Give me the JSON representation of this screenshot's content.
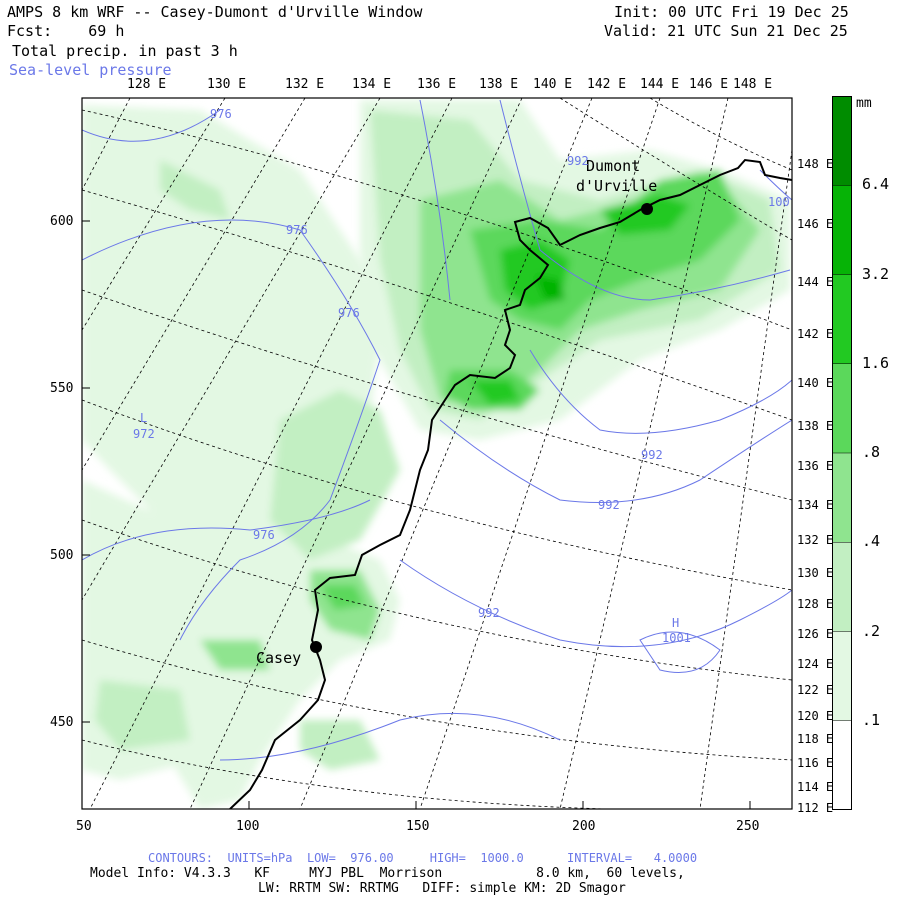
{
  "header": {
    "title": "AMPS 8 km WRF -- Casey-Dumont d'Urville Window",
    "fcst": "Fcst:    69 h",
    "field": "Total precip. in past 3 h",
    "overlay": "Sea-level pressure",
    "init": "Init: 00 UTC Fri 19 Dec 25",
    "valid": "Valid: 21 UTC Sun 21 Dec 25"
  },
  "colorbar": {
    "units": "mm",
    "levels": [
      ".1",
      ".2",
      ".4",
      ".8",
      "1.6",
      "3.2",
      "6.4"
    ],
    "colors": [
      "#ffffff",
      "#e3f8e3",
      "#c2efc2",
      "#8fe48f",
      "#5bd85b",
      "#22c922",
      "#06b306",
      "#008c00"
    ]
  },
  "axes": {
    "top_lon": [
      "128 E",
      "130 E",
      "132 E",
      "134 E",
      "136 E",
      "138 E",
      "140 E",
      "142 E",
      "144 E",
      "146 E",
      "148 E"
    ],
    "right_lon": [
      "148 E",
      "146 E",
      "144 E",
      "142 E",
      "140 E",
      "138 E",
      "136 E",
      "134 E",
      "132 E",
      "130 E",
      "128 E",
      "126 E",
      "124 E",
      "122 E",
      "120 E",
      "118 E",
      "116 E",
      "114 E",
      "112 E"
    ],
    "left_y": [
      "600",
      "550",
      "500",
      "450"
    ],
    "bottom_x": [
      "50",
      "100",
      "150",
      "200",
      "250"
    ]
  },
  "stations": [
    {
      "name": "Casey"
    },
    {
      "name": "Dumont",
      "name2": "d'Urville"
    }
  ],
  "pressure_labels": [
    "976",
    "976",
    "976",
    "976",
    "992",
    "992",
    "992",
    "992",
    "100"
  ],
  "pressure_centers": [
    {
      "letter": "L",
      "value": "972"
    },
    {
      "letter": "H",
      "value": "1001"
    }
  ],
  "footer": {
    "contours": "CONTOURS:  UNITS=hPa  LOW=  976.00     HIGH=  1000.0      INTERVAL=   4.0000",
    "model": "Model Info: V4.3.3   KF     MYJ PBL  Morrison            8.0 km,  60 levels,",
    "physics": "LW: RRTM SW: RRTMG   DIFF: simple KM: 2D Smagor"
  }
}
